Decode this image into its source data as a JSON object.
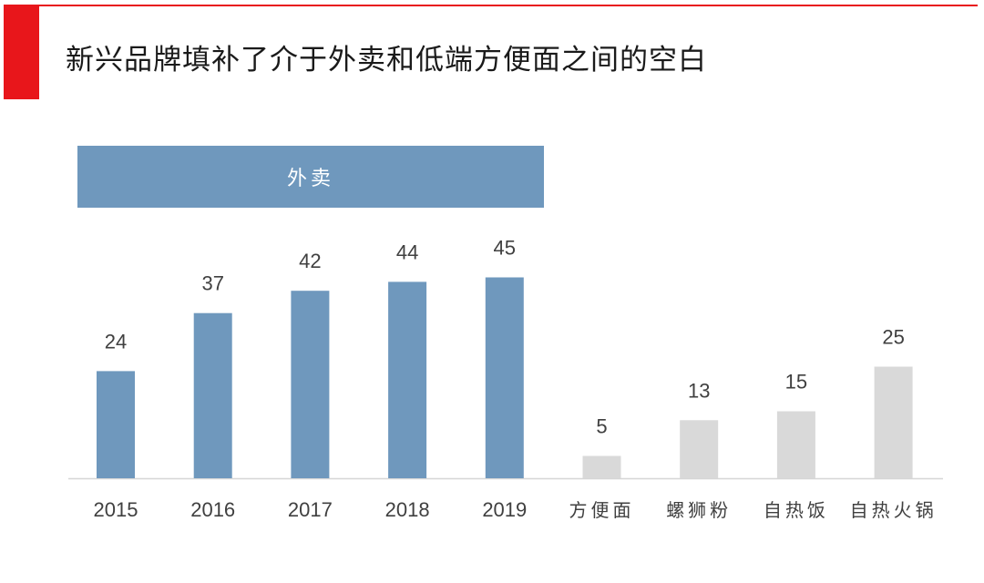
{
  "title": "新兴品牌填补了介于外卖和低端方便面之间的空白",
  "banner_label": "外卖",
  "colors": {
    "accent": "#e8161b",
    "primary_series": "#6f98bd",
    "secondary_series": "#d9d9d9",
    "axis": "#d6d6d6",
    "label_text": "#404040"
  },
  "chart_data": {
    "type": "bar",
    "title": "新兴品牌填补了介于外卖和低端方便面之间的空白",
    "xlabel": "",
    "ylabel": "",
    "ylim": [
      0,
      50
    ],
    "grid": false,
    "categories": [
      "2015",
      "2016",
      "2017",
      "2018",
      "2019",
      "方便面",
      "螺狮粉",
      "自热饭",
      "自热火锅"
    ],
    "values": [
      24,
      37,
      42,
      44,
      45,
      5,
      13,
      15,
      25
    ],
    "groups": [
      {
        "label": "外卖",
        "categories": [
          "2015",
          "2016",
          "2017",
          "2018",
          "2019"
        ],
        "color": "#6f98bd"
      },
      {
        "label": "",
        "categories": [
          "方便面",
          "螺狮粉",
          "自热饭",
          "自热火锅"
        ],
        "color": "#d9d9d9"
      }
    ],
    "data_labels": [
      "24",
      "37",
      "42",
      "44",
      "45",
      "5",
      "13",
      "15",
      "25"
    ]
  }
}
